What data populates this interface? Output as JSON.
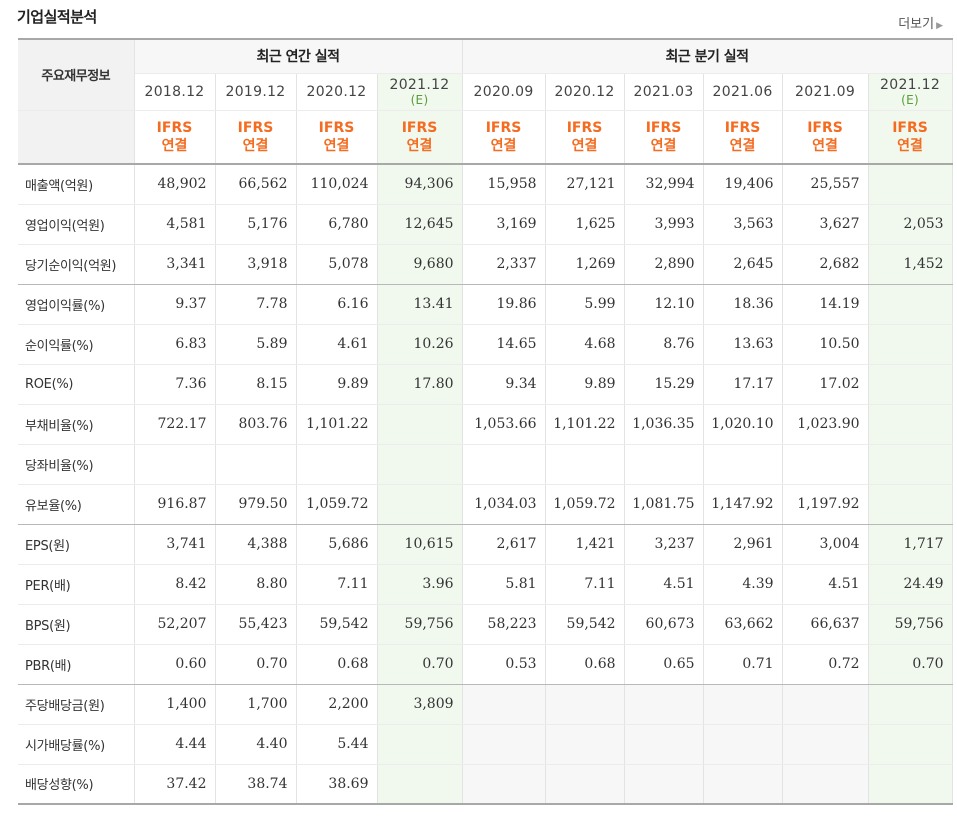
{
  "section": {
    "title": "기업실적분석",
    "more_label": "더보기",
    "more_icon": "chevron-right-icon"
  },
  "header": {
    "row_header": "주요재무정보",
    "annual_group": "최근 연간 실적",
    "quarter_group": "최근 분기 실적",
    "annual_dates": [
      "2018.12",
      "2019.12",
      "2020.12",
      "2021.12"
    ],
    "quarter_dates": [
      "2020.09",
      "2020.12",
      "2021.03",
      "2021.06",
      "2021.09",
      "2021.12"
    ],
    "estimate_mark": "(E)",
    "ifrs_line1": "IFRS",
    "ifrs_line2": "연결"
  },
  "colors": {
    "ifrs_orange": "#f36c21",
    "estimate_green": "#5a9c3a",
    "estimate_bg": "#f1f9ee"
  },
  "rows": [
    {
      "label": "매출액(억원)",
      "values": [
        "48,902",
        "66,562",
        "110,024",
        "94,306",
        "15,958",
        "27,121",
        "32,994",
        "19,406",
        "25,557",
        ""
      ]
    },
    {
      "label": "영업이익(억원)",
      "values": [
        "4,581",
        "5,176",
        "6,780",
        "12,645",
        "3,169",
        "1,625",
        "3,993",
        "3,563",
        "3,627",
        "2,053"
      ]
    },
    {
      "label": "당기순이익(억원)",
      "values": [
        "3,341",
        "3,918",
        "5,078",
        "9,680",
        "2,337",
        "1,269",
        "2,890",
        "2,645",
        "2,682",
        "1,452"
      ]
    },
    {
      "label": "영업이익률(%)",
      "values": [
        "9.37",
        "7.78",
        "6.16",
        "13.41",
        "19.86",
        "5.99",
        "12.10",
        "18.36",
        "14.19",
        ""
      ]
    },
    {
      "label": "순이익률(%)",
      "values": [
        "6.83",
        "5.89",
        "4.61",
        "10.26",
        "14.65",
        "4.68",
        "8.76",
        "13.63",
        "10.50",
        ""
      ]
    },
    {
      "label": "ROE(%)",
      "values": [
        "7.36",
        "8.15",
        "9.89",
        "17.80",
        "9.34",
        "9.89",
        "15.29",
        "17.17",
        "17.02",
        ""
      ]
    },
    {
      "label": "부채비율(%)",
      "values": [
        "722.17",
        "803.76",
        "1,101.22",
        "",
        "1,053.66",
        "1,101.22",
        "1,036.35",
        "1,020.10",
        "1,023.90",
        ""
      ]
    },
    {
      "label": "당좌비율(%)",
      "values": [
        "",
        "",
        "",
        "",
        "",
        "",
        "",
        "",
        "",
        ""
      ]
    },
    {
      "label": "유보율(%)",
      "values": [
        "916.87",
        "979.50",
        "1,059.72",
        "",
        "1,034.03",
        "1,059.72",
        "1,081.75",
        "1,147.92",
        "1,197.92",
        ""
      ]
    },
    {
      "label": "EPS(원)",
      "values": [
        "3,741",
        "4,388",
        "5,686",
        "10,615",
        "2,617",
        "1,421",
        "3,237",
        "2,961",
        "3,004",
        "1,717"
      ]
    },
    {
      "label": "PER(배)",
      "values": [
        "8.42",
        "8.80",
        "7.11",
        "3.96",
        "5.81",
        "7.11",
        "4.51",
        "4.39",
        "4.51",
        "24.49"
      ]
    },
    {
      "label": "BPS(원)",
      "values": [
        "52,207",
        "55,423",
        "59,542",
        "59,756",
        "58,223",
        "59,542",
        "60,673",
        "63,662",
        "66,637",
        "59,756"
      ]
    },
    {
      "label": "PBR(배)",
      "values": [
        "0.60",
        "0.70",
        "0.68",
        "0.70",
        "0.53",
        "0.68",
        "0.65",
        "0.71",
        "0.72",
        "0.70"
      ]
    },
    {
      "label": "주당배당금(원)",
      "values": [
        "1,400",
        "1,700",
        "2,200",
        "3,809",
        "",
        "",
        "",
        "",
        "",
        ""
      ]
    },
    {
      "label": "시가배당률(%)",
      "values": [
        "4.44",
        "4.40",
        "5.44",
        "",
        "",
        "",
        "",
        "",
        "",
        ""
      ]
    },
    {
      "label": "배당성향(%)",
      "values": [
        "37.42",
        "38.74",
        "38.69",
        "",
        "",
        "",
        "",
        "",
        "",
        ""
      ]
    }
  ]
}
